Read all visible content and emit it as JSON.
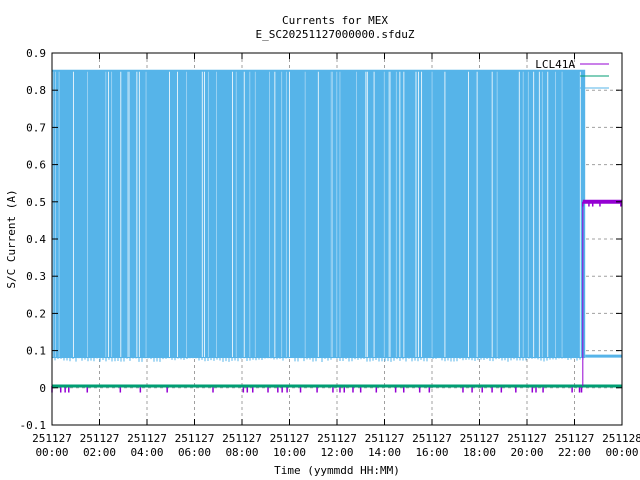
{
  "chart_data": {
    "type": "line",
    "title": "Currents for MEX",
    "subtitle": "E_SC20251127000000.sfduZ",
    "xlabel": "Time (yymmdd HH:MM)",
    "ylabel": "S/C Current (A)",
    "ylim": [
      -0.1,
      0.9
    ],
    "xlim_hours": [
      0,
      24
    ],
    "grid": true,
    "legend_placement": "top-right",
    "y_ticks": [
      "-0.1",
      "0",
      "0.1",
      "0.2",
      "0.3",
      "0.4",
      "0.5",
      "0.6",
      "0.7",
      "0.8",
      "0.9"
    ],
    "x_ticks": [
      {
        "date": "251127",
        "time": "00:00"
      },
      {
        "date": "251127",
        "time": "02:00"
      },
      {
        "date": "251127",
        "time": "04:00"
      },
      {
        "date": "251127",
        "time": "06:00"
      },
      {
        "date": "251127",
        "time": "08:00"
      },
      {
        "date": "251127",
        "time": "10:00"
      },
      {
        "date": "251127",
        "time": "12:00"
      },
      {
        "date": "251127",
        "time": "14:00"
      },
      {
        "date": "251127",
        "time": "16:00"
      },
      {
        "date": "251127",
        "time": "18:00"
      },
      {
        "date": "251127",
        "time": "20:00"
      },
      {
        "date": "251127",
        "time": "22:00"
      },
      {
        "date": "251128",
        "time": "00:00"
      }
    ],
    "series": [
      {
        "name": "LCL41A",
        "color": "#9400d3",
        "segments": [
          {
            "from_hour": 0,
            "to_hour": 22.35,
            "value": 0.005,
            "min": -0.01
          },
          {
            "from_hour": 22.35,
            "to_hour": 24,
            "value": 0.5,
            "min": 0.49,
            "max": 0.51
          }
        ]
      },
      {
        "name": "",
        "color": "#009e73",
        "segments": [
          {
            "from_hour": 0,
            "to_hour": 24,
            "value": 0.005
          }
        ]
      },
      {
        "name": "",
        "color": "#56b4e9",
        "segments": [
          {
            "from_hour": 0,
            "to_hour": 22.45,
            "oscillating": true,
            "min": 0.08,
            "max": 0.855
          },
          {
            "from_hour": 22.45,
            "to_hour": 24,
            "value": 0.085
          }
        ]
      }
    ]
  }
}
